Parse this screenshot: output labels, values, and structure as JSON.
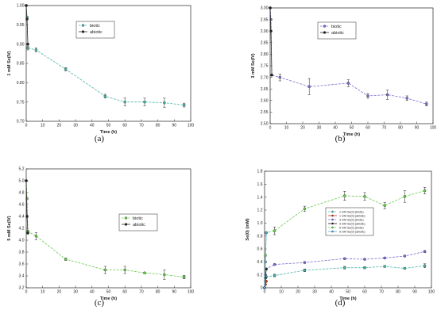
{
  "chart_data": [
    {
      "type": "line",
      "panel_label": "(a)",
      "xlabel": "Time (h)",
      "ylabel": "1 mM Se(IV)",
      "xlim": [
        0,
        100
      ],
      "ylim": [
        0.7,
        1.0
      ],
      "xticks": [
        0,
        10,
        20,
        30,
        40,
        50,
        60,
        70,
        80,
        90,
        100
      ],
      "yticks": [
        0.7,
        0.75,
        0.8,
        0.85,
        0.9,
        0.95,
        1.0
      ],
      "ytick_labels": [
        "0.70",
        "0.75",
        "0.80",
        "0.85",
        "0.90",
        "0.95",
        "1.00"
      ],
      "legend": {
        "position": "top-center",
        "small": false
      },
      "series": [
        {
          "name": "biotic",
          "color": "#49b6a9",
          "marker": "#49b6a9",
          "dash": true,
          "x": [
            0,
            0.5,
            1,
            6,
            24,
            48,
            60,
            72,
            84,
            96
          ],
          "y": [
            1.0,
            0.97,
            0.89,
            0.885,
            0.835,
            0.765,
            0.75,
            0.75,
            0.748,
            0.742
          ],
          "err": [
            0,
            0,
            0.005,
            0.005,
            0.004,
            0.005,
            0.01,
            0.01,
            0.012,
            0.005
          ]
        },
        {
          "name": "abiotic",
          "color": "#2a2a2a",
          "marker": "#222222",
          "dash": false,
          "x": [
            0,
            0.5,
            1
          ],
          "y": [
            1.0,
            0.965,
            0.9
          ],
          "err": [
            0,
            0,
            0
          ]
        }
      ]
    },
    {
      "type": "line",
      "panel_label": "(b)",
      "xlabel": "Time (h)",
      "ylabel": "3 mM Se(IV)",
      "xlim": [
        0,
        100
      ],
      "ylim": [
        2.5,
        3.0
      ],
      "xticks": [
        0,
        10,
        20,
        30,
        40,
        50,
        60,
        70,
        80,
        90,
        100
      ],
      "yticks": [
        2.5,
        2.55,
        2.6,
        2.65,
        2.7,
        2.75,
        2.8,
        2.85,
        2.9,
        2.95,
        3.0
      ],
      "ytick_labels": [
        "2.50",
        "2.55",
        "2.60",
        "2.65",
        "2.70",
        "2.75",
        "2.80",
        "2.85",
        "2.90",
        "2.95",
        "3.00"
      ],
      "legend": {
        "position": "top-center",
        "small": false
      },
      "series": [
        {
          "name": "biotic",
          "color": "#7b6fd0",
          "marker": "#7b6fd0",
          "dash": true,
          "x": [
            0,
            0.5,
            1,
            6,
            24,
            48,
            60,
            72,
            84,
            96
          ],
          "y": [
            3.0,
            2.95,
            2.71,
            2.7,
            2.66,
            2.675,
            2.62,
            2.625,
            2.61,
            2.585
          ],
          "err": [
            0,
            0,
            0,
            0.015,
            0.035,
            0.015,
            0.01,
            0.02,
            0.01,
            0.008
          ]
        },
        {
          "name": "abiotic",
          "color": "#2a2a2a",
          "marker": "#222222",
          "dash": false,
          "x": [
            0,
            0.5,
            1
          ],
          "y": [
            3.0,
            2.9,
            2.71
          ],
          "err": [
            0,
            0,
            0
          ]
        }
      ]
    },
    {
      "type": "line",
      "panel_label": "(c)",
      "xlabel": "Time (h)",
      "ylabel": "5 mM Se(IV)",
      "xlim": [
        0,
        100
      ],
      "ylim": [
        3.2,
        5.2
      ],
      "xticks": [
        0,
        10,
        20,
        30,
        40,
        50,
        60,
        70,
        80,
        90,
        100
      ],
      "yticks": [
        3.2,
        3.4,
        3.6,
        3.8,
        4.0,
        4.2,
        4.4,
        4.6,
        4.8,
        5.0,
        5.2
      ],
      "ytick_labels": [
        "3.2",
        "3.4",
        "3.6",
        "3.8",
        "4.0",
        "4.2",
        "4.4",
        "4.6",
        "4.8",
        "5.0",
        "5.2"
      ],
      "legend": {
        "position": "center-right",
        "small": false
      },
      "series": [
        {
          "name": "biotic",
          "color": "#6acb4f",
          "marker": "#6acb4f",
          "dash": true,
          "x": [
            0,
            0.5,
            1,
            6,
            24,
            48,
            60,
            72,
            84,
            96
          ],
          "y": [
            5.0,
            4.7,
            4.15,
            4.07,
            3.68,
            3.5,
            3.5,
            3.45,
            3.42,
            3.38
          ],
          "err": [
            0,
            0,
            0,
            0.06,
            0.02,
            0.06,
            0.06,
            0.01,
            0.08,
            0.03
          ]
        },
        {
          "name": "abiotic",
          "color": "#2a2a2a",
          "marker": "#222222",
          "dash": false,
          "x": [
            0,
            0.5,
            1
          ],
          "y": [
            5.0,
            4.4,
            4.12
          ],
          "err": [
            0,
            0,
            0
          ]
        }
      ]
    },
    {
      "type": "line",
      "panel_label": "(d)",
      "xlabel": "Time (h)",
      "ylabel": "Se(0) (mM)",
      "xlim": [
        0,
        100
      ],
      "ylim": [
        0,
        1.8
      ],
      "xticks": [
        0,
        10,
        20,
        30,
        40,
        50,
        60,
        70,
        80,
        90,
        100
      ],
      "yticks": [
        0,
        0.2,
        0.4,
        0.6,
        0.8,
        1.0,
        1.2,
        1.4,
        1.6,
        1.8
      ],
      "ytick_labels": [
        "0",
        "0.2",
        "0.4",
        "0.6",
        "0.8",
        "1.0",
        "1.2",
        "1.4",
        "1.6",
        "1.8"
      ],
      "legend": {
        "position": "center-right",
        "small": true
      },
      "series": [
        {
          "name": "1 mM Se(0) (biotic)",
          "color": "#49b6a9",
          "marker": "#49b6a9",
          "dash": true,
          "x": [
            0,
            0.5,
            1,
            6,
            24,
            48,
            60,
            72,
            84,
            96
          ],
          "y": [
            0,
            0.1,
            0.17,
            0.19,
            0.27,
            0.31,
            0.31,
            0.33,
            0.3,
            0.34
          ],
          "err": [
            0,
            0,
            0,
            0.02,
            0.02,
            0.02,
            0.015,
            0.015,
            0.01,
            0.03
          ]
        },
        {
          "name": "1 mM Se(0) (abiotic)",
          "color": "#c0392b",
          "marker": "#c0392b",
          "dash": false,
          "x": [
            0,
            0.5,
            1
          ],
          "y": [
            0,
            0.05,
            0.1
          ],
          "err": [
            0,
            0,
            0
          ]
        },
        {
          "name": "3 mM Se(0) (biotic)",
          "color": "#7b6fd0",
          "marker": "#7b6fd0",
          "dash": true,
          "x": [
            0,
            0.5,
            1,
            6,
            24,
            48,
            60,
            72,
            84,
            96
          ],
          "y": [
            0,
            0.2,
            0.29,
            0.36,
            0.39,
            0.45,
            0.44,
            0.46,
            0.49,
            0.56
          ],
          "err": [
            0,
            0,
            0,
            0.01,
            0.01,
            0.01,
            0.01,
            0.01,
            0.01,
            0.015
          ]
        },
        {
          "name": "3 mM Se(0) (abiotic)",
          "color": "#222222",
          "marker": "#222222",
          "dash": false,
          "x": [
            0,
            0.5,
            1
          ],
          "y": [
            0,
            0.15,
            0.29
          ],
          "err": [
            0,
            0,
            0
          ]
        },
        {
          "name": "5 mM Se(0) (biotic)",
          "color": "#6acb4f",
          "marker": "#6acb4f",
          "dash": true,
          "x": [
            0,
            0.5,
            1,
            6,
            24,
            48,
            60,
            72,
            84,
            96
          ],
          "y": [
            0,
            0.5,
            0.85,
            0.88,
            1.22,
            1.42,
            1.41,
            1.27,
            1.41,
            1.5
          ],
          "err": [
            0,
            0,
            0,
            0.06,
            0.04,
            0.07,
            0.06,
            0.05,
            0.09,
            0.05
          ]
        },
        {
          "name": "5 mM Se(0) (abiotic)",
          "color": "#5aaad6",
          "marker": "#5aaad6",
          "dash": false,
          "x": [
            0,
            0.5,
            1
          ],
          "y": [
            0,
            0.4,
            0.85
          ],
          "err": [
            0,
            0,
            0
          ]
        }
      ]
    }
  ]
}
